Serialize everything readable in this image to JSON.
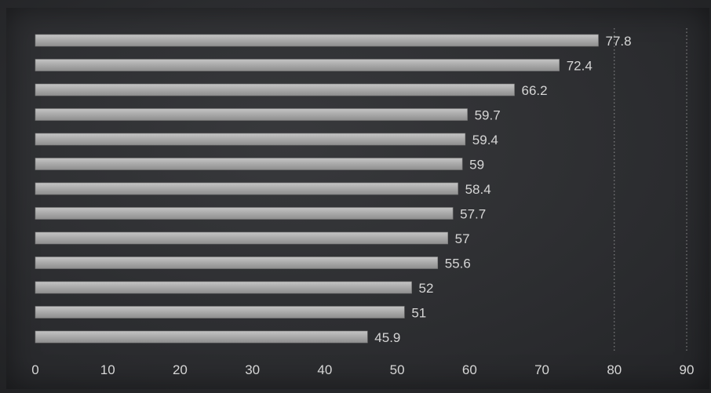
{
  "chart_data": {
    "type": "bar",
    "orientation": "horizontal",
    "values": [
      77.8,
      72.4,
      66.2,
      59.7,
      59.4,
      59,
      58.4,
      57.7,
      57,
      55.6,
      52,
      51,
      45.9
    ],
    "data_labels": [
      "77.8",
      "72.4",
      "66.2",
      "59.7",
      "59.4",
      "59",
      "58.4",
      "57.7",
      "57",
      "55.6",
      "52",
      "51",
      "45.9"
    ],
    "x_ticks": [
      "0",
      "10",
      "20",
      "30",
      "40",
      "50",
      "60",
      "70",
      "80",
      "90"
    ],
    "xlim": [
      0,
      90
    ],
    "grid": "vertical dotted lines at 80 and 90",
    "bar_color": "#a9a9a9",
    "background_color": "#2f3033",
    "label_color": "#d6d6d6"
  }
}
